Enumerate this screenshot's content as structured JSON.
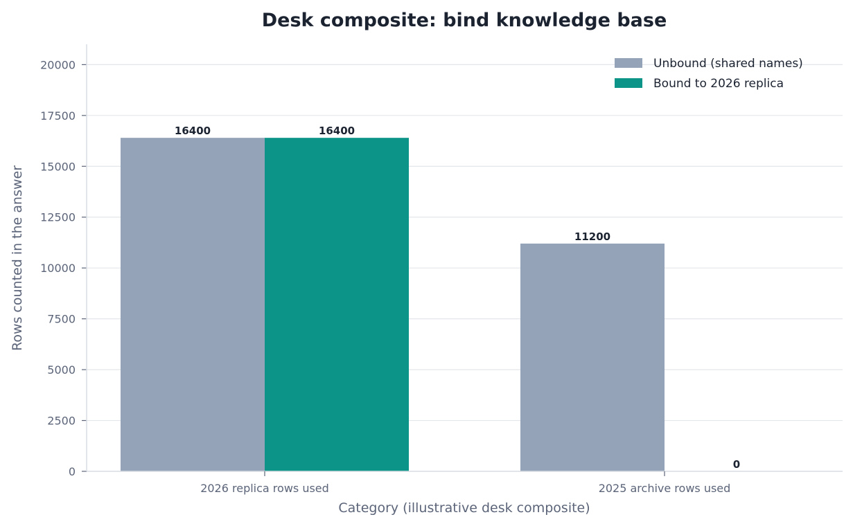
{
  "chart_data": {
    "type": "bar",
    "title": "Desk composite: bind knowledge base",
    "xlabel": "Category (illustrative desk composite)",
    "ylabel": "Rows counted in the answer",
    "categories": [
      "2026 replica rows used",
      "2025 archive rows used"
    ],
    "series": [
      {
        "name": "Unbound (shared names)",
        "values": [
          16400,
          11200
        ],
        "color": "#94a3b8"
      },
      {
        "name": "Bound to 2026 replica",
        "values": [
          16400,
          0
        ],
        "color": "#0d9488"
      }
    ],
    "ylim": [
      0,
      21000
    ],
    "yticks": [
      0,
      2500,
      5000,
      7500,
      10000,
      12500,
      15000,
      17500,
      20000
    ],
    "grid": "horizontal",
    "legend_position": "top-right"
  }
}
